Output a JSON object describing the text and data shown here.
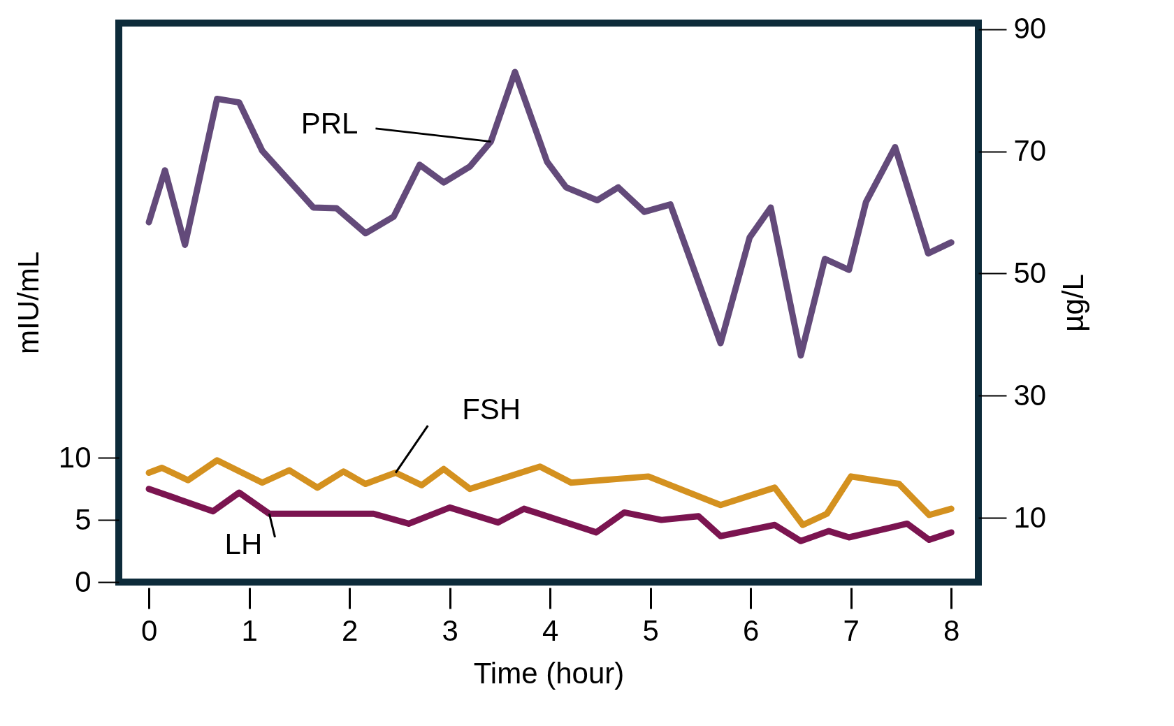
{
  "chart_data": {
    "type": "line",
    "xlabel": "Time (hour)",
    "ylabel": "mIU/mL",
    "y2label": "µg/L",
    "xlim": [
      -0.3,
      8.27
    ],
    "xticks": [
      0,
      1,
      2,
      3,
      4,
      5,
      6,
      7,
      8
    ],
    "ylim": [
      0,
      45
    ],
    "yticks": [
      0,
      5,
      10
    ],
    "y2lim": [
      -0.5,
      91
    ],
    "y2ticks": [
      10,
      30,
      50,
      70,
      90
    ],
    "series": [
      {
        "name": "PRL",
        "color": "#634a7a",
        "axis": "y2",
        "x": [
          0,
          0.16,
          0.36,
          0.68,
          0.9,
          1.13,
          1.64,
          1.87,
          2.16,
          2.44,
          2.7,
          2.94,
          3.2,
          3.41,
          3.65,
          3.97,
          4.16,
          4.47,
          4.68,
          4.94,
          5.2,
          5.39,
          5.7,
          5.99,
          6.2,
          6.5,
          6.74,
          6.98,
          7.15,
          7.44,
          7.77,
          8.0
        ],
        "values": [
          58.4,
          66.9,
          54.7,
          78.6,
          78.0,
          70.1,
          60.8,
          60.7,
          56.6,
          59.3,
          67.8,
          64.9,
          67.5,
          71.6,
          83.0,
          68.3,
          64.1,
          62.0,
          64.1,
          60.1,
          61.3,
          52.7,
          38.6,
          55.9,
          60.8,
          36.6,
          52.4,
          50.6,
          61.7,
          70.7,
          53.3,
          55.1
        ]
      },
      {
        "name": "FSH",
        "color": "#d4911f",
        "x": [
          0,
          0.13,
          0.39,
          0.68,
          1.13,
          1.4,
          1.68,
          1.94,
          2.16,
          2.46,
          2.72,
          2.94,
          3.2,
          3.9,
          4.21,
          4.98,
          5.7,
          6.24,
          6.52,
          6.76,
          7.0,
          7.48,
          7.78,
          8.0
        ],
        "values": [
          8.8,
          9.2,
          8.2,
          9.8,
          8.0,
          9.0,
          7.6,
          8.9,
          7.9,
          8.8,
          7.8,
          9.1,
          7.5,
          9.3,
          8.0,
          8.5,
          6.2,
          7.6,
          4.6,
          5.5,
          8.5,
          7.9,
          5.4,
          5.9
        ]
      },
      {
        "name": "LH",
        "color": "#7b1450",
        "x": [
          0,
          0.64,
          0.9,
          1.2,
          2.24,
          2.59,
          3.0,
          3.48,
          3.74,
          4.46,
          4.74,
          5.11,
          5.48,
          5.7,
          6.24,
          6.5,
          6.78,
          6.98,
          7.56,
          7.78,
          8.0
        ],
        "values": [
          7.5,
          5.7,
          7.2,
          5.5,
          5.5,
          4.7,
          6.0,
          4.8,
          5.9,
          4.0,
          5.6,
          5.0,
          5.3,
          3.7,
          4.6,
          3.3,
          4.1,
          3.6,
          4.7,
          3.4,
          4.0
        ]
      }
    ]
  }
}
